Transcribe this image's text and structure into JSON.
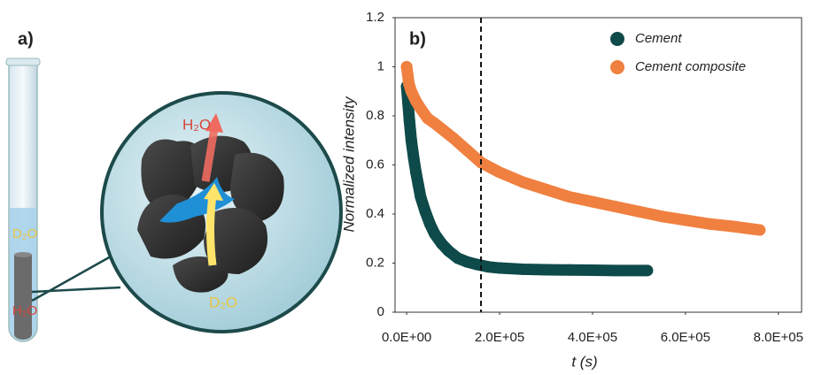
{
  "panel_a": {
    "label": "a)",
    "tube_top_label": "D₂O",
    "tube_bottom_label": "H₂O",
    "bubble_top_label": "H₂O",
    "bubble_bottom_label": "D₂O"
  },
  "chart_data": {
    "type": "scatter",
    "panel_label": "b)",
    "x_label": "t (s)",
    "y_label": "Normalized intensity",
    "xlim": [
      -25000,
      850000
    ],
    "ylim": [
      0,
      1.2
    ],
    "xticks": [
      {
        "value": 0,
        "label": "0.0E+00"
      },
      {
        "value": 200000,
        "label": "2.0E+05"
      },
      {
        "value": 400000,
        "label": "4.0E+05"
      },
      {
        "value": 600000,
        "label": "6.0E+05"
      },
      {
        "value": 800000,
        "label": "8.0E+05"
      }
    ],
    "yticks": [
      0,
      0.2,
      0.4,
      0.6,
      0.8,
      1,
      1.2
    ],
    "reference_x": 160000,
    "legend_position": "upper right",
    "series": [
      {
        "name": "Cement",
        "color": "#0f4a4a",
        "x": [
          0,
          3000,
          6000,
          10000,
          15000,
          20000,
          25000,
          30000,
          40000,
          50000,
          60000,
          75000,
          90000,
          110000,
          130000,
          150000,
          175000,
          200000,
          250000,
          300000,
          350000,
          400000,
          450000,
          518000
        ],
        "values": [
          0.92,
          0.85,
          0.78,
          0.7,
          0.63,
          0.57,
          0.52,
          0.47,
          0.41,
          0.36,
          0.32,
          0.28,
          0.25,
          0.22,
          0.205,
          0.195,
          0.185,
          0.18,
          0.175,
          0.173,
          0.172,
          0.171,
          0.17,
          0.17
        ]
      },
      {
        "name": "Cement composite",
        "color": "#f08040",
        "x": [
          0,
          5000,
          10000,
          20000,
          30000,
          45000,
          60000,
          80000,
          100000,
          130000,
          160000,
          200000,
          250000,
          300000,
          350000,
          400000,
          450000,
          500000,
          550000,
          600000,
          650000,
          700000,
          760000
        ],
        "values": [
          1.0,
          0.93,
          0.9,
          0.86,
          0.83,
          0.79,
          0.77,
          0.74,
          0.71,
          0.66,
          0.61,
          0.57,
          0.53,
          0.5,
          0.47,
          0.45,
          0.43,
          0.41,
          0.39,
          0.375,
          0.36,
          0.35,
          0.335
        ]
      }
    ]
  }
}
